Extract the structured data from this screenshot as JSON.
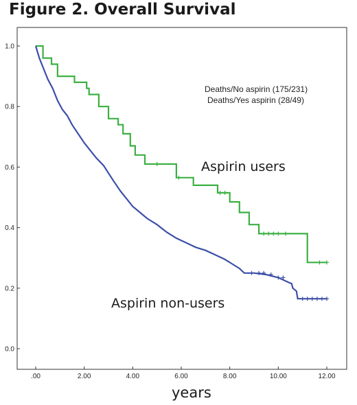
{
  "chart_data": {
    "type": "line",
    "title": "Figure 2. Overall Survival",
    "xlabel": "years",
    "ylabel": "",
    "xlim": [
      0,
      12
    ],
    "ylim": [
      0,
      1.0
    ],
    "xticks": [
      ".00",
      "2.00",
      "4.00",
      "6.00",
      "8.00",
      "10.00",
      "12.00"
    ],
    "yticks": [
      "0.0",
      "0.2",
      "0.4",
      "0.6",
      "0.8",
      "1.0"
    ],
    "legend": {
      "position": "top-right",
      "entries": [
        "Deaths/No aspirin (175/231)",
        "Deaths/Yes aspirin (28/49)"
      ]
    },
    "annotations": [
      "Aspirin users",
      "Aspirin non-users"
    ],
    "series": [
      {
        "name": "Aspirin users",
        "color": "#3cb043",
        "x": [
          0,
          0.3,
          0.3,
          0.65,
          0.65,
          0.9,
          0.9,
          1.6,
          1.6,
          2.1,
          2.1,
          2.2,
          2.2,
          2.6,
          2.6,
          3.0,
          3.0,
          3.4,
          3.4,
          3.6,
          3.6,
          3.9,
          3.9,
          4.1,
          4.1,
          4.5,
          4.5,
          5.8,
          5.8,
          6.5,
          6.5,
          7.5,
          7.5,
          8.0,
          8.0,
          8.4,
          8.4,
          8.8,
          8.8,
          9.2,
          9.2,
          11.2,
          11.2,
          12.0
        ],
        "y": [
          1.0,
          1.0,
          0.96,
          0.96,
          0.94,
          0.94,
          0.9,
          0.9,
          0.88,
          0.88,
          0.86,
          0.86,
          0.84,
          0.84,
          0.8,
          0.8,
          0.76,
          0.76,
          0.74,
          0.74,
          0.71,
          0.71,
          0.67,
          0.67,
          0.64,
          0.64,
          0.61,
          0.61,
          0.565,
          0.565,
          0.54,
          0.54,
          0.515,
          0.515,
          0.485,
          0.485,
          0.45,
          0.45,
          0.41,
          0.41,
          0.38,
          0.38,
          0.285,
          0.285
        ]
      },
      {
        "name": "Aspirin non-users",
        "color": "#3c4fa8",
        "x": [
          0,
          0.15,
          0.3,
          0.5,
          0.7,
          0.9,
          1.1,
          1.3,
          1.5,
          1.75,
          2.0,
          2.2,
          2.5,
          2.8,
          3.0,
          3.2,
          3.5,
          3.8,
          4.0,
          4.3,
          4.6,
          5.0,
          5.4,
          5.8,
          6.2,
          6.6,
          7.0,
          7.4,
          7.8,
          8.1,
          8.4,
          8.6,
          9.0,
          9.5,
          10.0,
          10.4,
          10.55,
          10.6,
          10.75,
          10.8,
          12.0
        ],
        "y": [
          1.0,
          0.96,
          0.93,
          0.89,
          0.86,
          0.82,
          0.79,
          0.77,
          0.74,
          0.71,
          0.68,
          0.66,
          0.63,
          0.605,
          0.58,
          0.555,
          0.52,
          0.49,
          0.47,
          0.45,
          0.43,
          0.41,
          0.385,
          0.365,
          0.35,
          0.335,
          0.325,
          0.31,
          0.295,
          0.28,
          0.265,
          0.25,
          0.25,
          0.245,
          0.235,
          0.22,
          0.215,
          0.2,
          0.19,
          0.165,
          0.165
        ]
      }
    ],
    "censor_marks": [
      {
        "series": "Aspirin users",
        "x": [
          5.0,
          5.9,
          7.6,
          7.8,
          9.4,
          9.6,
          9.8,
          10.0,
          10.3,
          11.7,
          12.0
        ],
        "y": [
          0.61,
          0.565,
          0.515,
          0.515,
          0.38,
          0.38,
          0.38,
          0.38,
          0.38,
          0.285,
          0.285
        ]
      },
      {
        "series": "Aspirin non-users",
        "x": [
          8.9,
          9.2,
          9.4,
          9.7,
          10.0,
          10.2,
          11.0,
          11.2,
          11.4,
          11.6,
          11.8,
          12.0
        ],
        "y": [
          0.25,
          0.25,
          0.25,
          0.245,
          0.235,
          0.235,
          0.165,
          0.165,
          0.165,
          0.165,
          0.165,
          0.165
        ]
      }
    ]
  }
}
